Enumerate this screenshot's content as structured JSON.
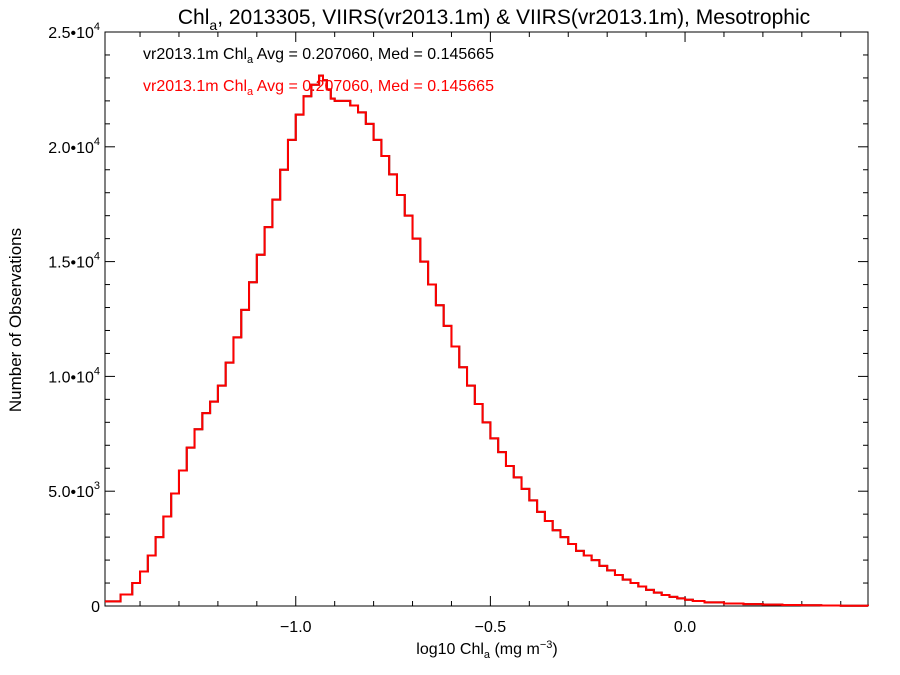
{
  "chart_data": {
    "type": "line",
    "title": {
      "main": "Chl",
      "sub": "a",
      "rest": ", 2013305, VIIRS(vr2013.1m) & VIIRS(vr2013.1m), Mesotrophic"
    },
    "xlabel": {
      "pre": "log10 Chl",
      "sub": "a",
      "post": " (mg m",
      "sup": "−3",
      "close": ")"
    },
    "ylabel": "Number of Observations",
    "xlim": [
      -1.49,
      0.47
    ],
    "ylim": [
      0,
      25000
    ],
    "xticks": [
      {
        "value": -1.0,
        "label": "−1.0"
      },
      {
        "value": -0.5,
        "label": "−0.5"
      },
      {
        "value": 0.0,
        "label": "0.0"
      }
    ],
    "yticks": [
      {
        "value": 0,
        "mant": "0",
        "exp": ""
      },
      {
        "value": 5000,
        "mant": "5.0•10",
        "exp": "3"
      },
      {
        "value": 10000,
        "mant": "1.0•10",
        "exp": "4"
      },
      {
        "value": 15000,
        "mant": "1.5•10",
        "exp": "4"
      },
      {
        "value": 20000,
        "mant": "2.0•10",
        "exp": "4"
      },
      {
        "value": 25000,
        "mant": "2.5•10",
        "exp": "4"
      }
    ],
    "annotations": [
      {
        "color": "#000000",
        "pre": "vr2013.1m Chl",
        "sub": "a",
        "post": " Avg = 0.207060, Med = 0.145665"
      },
      {
        "color": "#ff0000",
        "pre": "vr2013.1m Chl",
        "sub": "a",
        "post": " Avg = 0.207060, Med = 0.145665"
      }
    ],
    "series": [
      {
        "color": "#000000",
        "x": [
          -1.49,
          -1.45,
          -1.42,
          -1.4,
          -1.38,
          -1.36,
          -1.34,
          -1.32,
          -1.3,
          -1.28,
          -1.26,
          -1.24,
          -1.22,
          -1.2,
          -1.18,
          -1.16,
          -1.14,
          -1.12,
          -1.1,
          -1.08,
          -1.06,
          -1.04,
          -1.02,
          -1.0,
          -0.98,
          -0.96,
          -0.94,
          -0.93,
          -0.92,
          -0.91,
          -0.9,
          -0.88,
          -0.86,
          -0.84,
          -0.82,
          -0.8,
          -0.78,
          -0.76,
          -0.74,
          -0.72,
          -0.7,
          -0.68,
          -0.66,
          -0.64,
          -0.62,
          -0.6,
          -0.58,
          -0.56,
          -0.54,
          -0.52,
          -0.5,
          -0.48,
          -0.46,
          -0.44,
          -0.42,
          -0.4,
          -0.38,
          -0.36,
          -0.34,
          -0.32,
          -0.3,
          -0.28,
          -0.26,
          -0.24,
          -0.22,
          -0.2,
          -0.18,
          -0.16,
          -0.14,
          -0.12,
          -0.1,
          -0.08,
          -0.06,
          -0.04,
          -0.02,
          0.0,
          0.02,
          0.05,
          0.1,
          0.15,
          0.2,
          0.25,
          0.3,
          0.35,
          0.4,
          0.47
        ],
        "y": [
          200,
          500,
          1000,
          1500,
          2200,
          3000,
          3900,
          4900,
          5900,
          6900,
          7700,
          8400,
          8900,
          9600,
          10600,
          11700,
          12900,
          14100,
          15300,
          16500,
          17700,
          19000,
          20300,
          21400,
          22200,
          22700,
          23100,
          22900,
          22500,
          22100,
          22000,
          22000,
          21800,
          21500,
          21000,
          20300,
          19600,
          18800,
          17900,
          17000,
          16000,
          15000,
          14000,
          13100,
          12200,
          11300,
          10400,
          9600,
          8800,
          8000,
          7300,
          6700,
          6100,
          5600,
          5100,
          4600,
          4100,
          3700,
          3300,
          3000,
          2700,
          2400,
          2200,
          2000,
          1750,
          1550,
          1350,
          1150,
          1000,
          850,
          700,
          580,
          480,
          400,
          330,
          270,
          220,
          160,
          110,
          80,
          60,
          45,
          30,
          20,
          10,
          0
        ]
      },
      {
        "color": "#ff0000",
        "x": [
          -1.49,
          -1.45,
          -1.42,
          -1.4,
          -1.38,
          -1.36,
          -1.34,
          -1.32,
          -1.3,
          -1.28,
          -1.26,
          -1.24,
          -1.22,
          -1.2,
          -1.18,
          -1.16,
          -1.14,
          -1.12,
          -1.1,
          -1.08,
          -1.06,
          -1.04,
          -1.02,
          -1.0,
          -0.98,
          -0.96,
          -0.94,
          -0.93,
          -0.92,
          -0.91,
          -0.9,
          -0.88,
          -0.86,
          -0.84,
          -0.82,
          -0.8,
          -0.78,
          -0.76,
          -0.74,
          -0.72,
          -0.7,
          -0.68,
          -0.66,
          -0.64,
          -0.62,
          -0.6,
          -0.58,
          -0.56,
          -0.54,
          -0.52,
          -0.5,
          -0.48,
          -0.46,
          -0.44,
          -0.42,
          -0.4,
          -0.38,
          -0.36,
          -0.34,
          -0.32,
          -0.3,
          -0.28,
          -0.26,
          -0.24,
          -0.22,
          -0.2,
          -0.18,
          -0.16,
          -0.14,
          -0.12,
          -0.1,
          -0.08,
          -0.06,
          -0.04,
          -0.02,
          0.0,
          0.02,
          0.05,
          0.1,
          0.15,
          0.2,
          0.25,
          0.3,
          0.35,
          0.4,
          0.47
        ],
        "y": [
          200,
          500,
          1000,
          1500,
          2200,
          3000,
          3900,
          4900,
          5900,
          6900,
          7700,
          8400,
          8900,
          9600,
          10600,
          11700,
          12900,
          14100,
          15300,
          16500,
          17700,
          19000,
          20300,
          21400,
          22200,
          22700,
          23100,
          22900,
          22500,
          22100,
          22000,
          22000,
          21800,
          21500,
          21000,
          20300,
          19600,
          18800,
          17900,
          17000,
          16000,
          15000,
          14000,
          13100,
          12200,
          11300,
          10400,
          9600,
          8800,
          8000,
          7300,
          6700,
          6100,
          5600,
          5100,
          4600,
          4100,
          3700,
          3300,
          3000,
          2700,
          2400,
          2200,
          2000,
          1750,
          1550,
          1350,
          1150,
          1000,
          850,
          700,
          580,
          480,
          400,
          330,
          270,
          220,
          160,
          110,
          80,
          60,
          45,
          30,
          20,
          10,
          0
        ]
      }
    ]
  }
}
